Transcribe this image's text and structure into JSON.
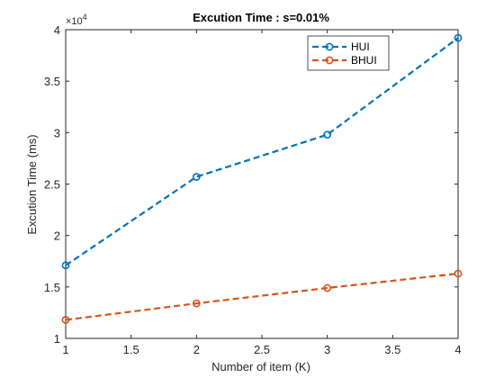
{
  "chart_data": {
    "type": "line",
    "title": "Excution Time : s=0.01%",
    "xlabel": "Number of item (K)",
    "ylabel": "Excution Time (ms)",
    "y_multiplier_label_base": "×10",
    "y_multiplier_label_exp": "4",
    "xlim": [
      1,
      4
    ],
    "ylim": [
      1,
      4
    ],
    "x_ticks": [
      1,
      1.5,
      2,
      2.5,
      3,
      3.5,
      4
    ],
    "x_tick_labels": [
      "1",
      "1.5",
      "2",
      "2.5",
      "3",
      "3.5",
      "4"
    ],
    "y_ticks": [
      1,
      1.5,
      2,
      2.5,
      3,
      3.5,
      4
    ],
    "y_tick_labels": [
      "1",
      "1.5",
      "2",
      "2.5",
      "3",
      "3.5",
      "4"
    ],
    "grid": false,
    "legend_position": "top-right",
    "x": [
      1,
      2,
      3,
      4
    ],
    "series": [
      {
        "name": "HUI",
        "values": [
          1.71,
          2.57,
          2.98,
          3.92
        ],
        "color": "#0072BD"
      },
      {
        "name": "BHUI",
        "values": [
          1.18,
          1.34,
          1.49,
          1.63
        ],
        "color": "#D95319"
      }
    ]
  }
}
